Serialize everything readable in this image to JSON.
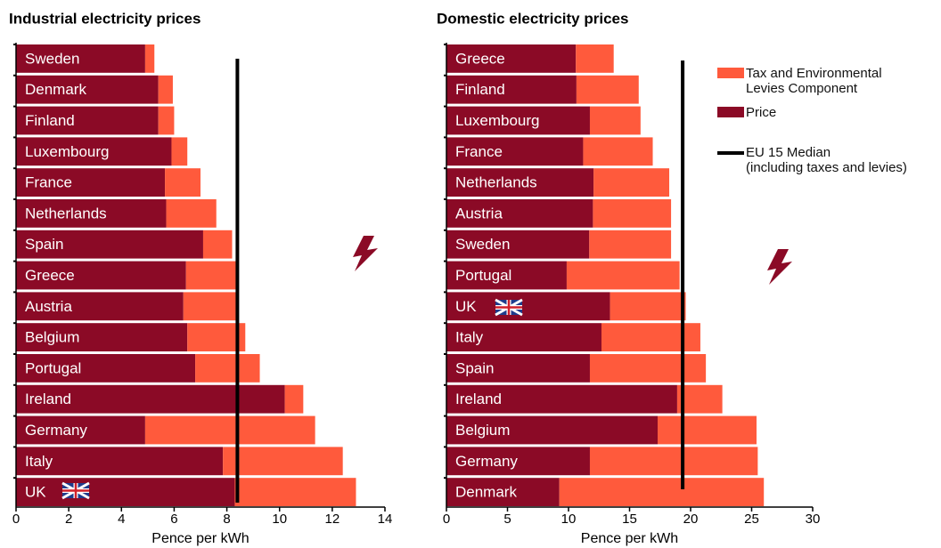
{
  "chart_data": [
    {
      "type": "bar",
      "orientation": "horizontal",
      "stacked": true,
      "title": "Industrial electricity prices",
      "x_label": "Pence per kWh",
      "categories": [
        "Sweden",
        "Denmark",
        "Finland",
        "Luxembourg",
        "France",
        "Netherlands",
        "Spain",
        "Greece",
        "Austria",
        "Belgium",
        "Portugal",
        "Ireland",
        "Germany",
        "Italy",
        "UK"
      ],
      "series": [
        {
          "color": "#8b0a26",
          "values": [
            4.9,
            5.4,
            5.4,
            5.9,
            5.65,
            5.7,
            7.1,
            6.45,
            6.35,
            6.5,
            6.8,
            10.2,
            4.9,
            7.85,
            8.3
          ]
        },
        {
          "color": "#ff5a3c",
          "values": [
            0.35,
            0.55,
            0.6,
            0.6,
            1.35,
            1.9,
            1.1,
            1.9,
            2.0,
            2.2,
            2.45,
            0.7,
            6.45,
            4.55,
            4.6
          ]
        }
      ],
      "median": 8.4,
      "median_color": "#000000",
      "xlim": [
        0,
        14
      ],
      "xticks": [
        0,
        2,
        4,
        6,
        8,
        10,
        12,
        14
      ]
    },
    {
      "type": "bar",
      "orientation": "horizontal",
      "stacked": true,
      "title": "Domestic electricity prices",
      "x_label": "Pence per kWh",
      "categories": [
        "Greece",
        "Finland",
        "Luxembourg",
        "France",
        "Netherlands",
        "Austria",
        "Sweden",
        "Portugal",
        "UK",
        "Italy",
        "Spain",
        "Ireland",
        "Belgium",
        "Germany",
        "Denmark"
      ],
      "series": [
        {
          "name": "Price",
          "color": "#8b0a26",
          "values": [
            10.6,
            10.65,
            11.75,
            11.2,
            12.05,
            12.0,
            11.7,
            9.85,
            13.4,
            12.7,
            11.75,
            18.9,
            17.3,
            11.75,
            9.25
          ]
        },
        {
          "name": "Tax and Environmental\nLevies Component",
          "color": "#ff5a3c",
          "values": [
            3.1,
            5.1,
            4.15,
            5.7,
            6.2,
            6.4,
            6.7,
            9.25,
            6.2,
            8.1,
            9.5,
            3.7,
            8.1,
            13.75,
            16.75
          ]
        }
      ],
      "median": 19.35,
      "median_color": "#000000",
      "median_label": "EU 15 Median\n(including taxes and levies)",
      "xlim": [
        0,
        30
      ],
      "xticks": [
        0,
        5,
        10,
        15,
        20,
        25,
        30
      ]
    }
  ]
}
